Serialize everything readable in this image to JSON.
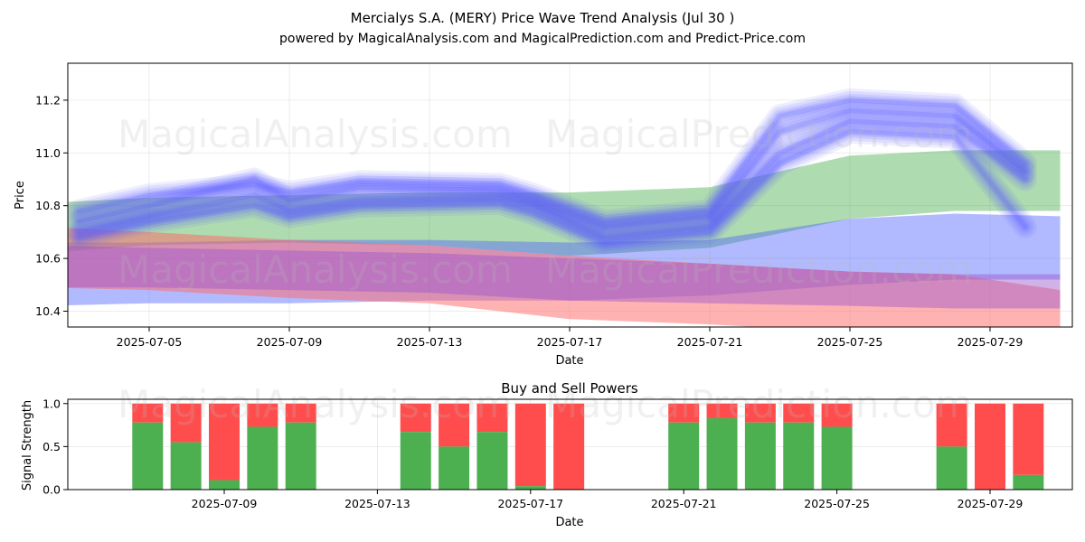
{
  "header": {
    "title": "Mercialys S.A. (MERY) Price Wave Trend Analysis (Jul 30 )",
    "subtitle": "powered by MagicalAnalysis.com and MagicalPrediction.com and Predict-Price.com"
  },
  "watermarks": [
    "MagicalAnalysis.com",
    "MagicalPrediction.com"
  ],
  "chart_data": [
    {
      "type": "area",
      "title": "",
      "xlabel": "Date",
      "ylabel": "Price",
      "ylim": [
        10.34,
        11.34
      ],
      "yticks": [
        "10.4",
        "10.6",
        "10.8",
        "11.0",
        "11.2"
      ],
      "xlim": [
        "2025-07-02",
        "2025-07-31"
      ],
      "xticks": [
        "2025-07-05",
        "2025-07-09",
        "2025-07-13",
        "2025-07-17",
        "2025-07-21",
        "2025-07-25",
        "2025-07-29"
      ],
      "grid": true,
      "bands": [
        {
          "name": "green band",
          "color": "#4caf50",
          "opacity": 0.45,
          "x": [
            "2025-07-02",
            "2025-07-05",
            "2025-07-09",
            "2025-07-13",
            "2025-07-17",
            "2025-07-21",
            "2025-07-25",
            "2025-07-28",
            "2025-07-31"
          ],
          "upper": [
            10.81,
            10.83,
            10.84,
            10.85,
            10.85,
            10.87,
            10.99,
            11.01,
            11.01
          ],
          "lower": [
            10.62,
            10.65,
            10.66,
            10.65,
            10.61,
            10.64,
            10.75,
            10.78,
            10.78
          ]
        },
        {
          "name": "blue band",
          "color": "#5566ff",
          "opacity": 0.45,
          "x": [
            "2025-07-02",
            "2025-07-05",
            "2025-07-09",
            "2025-07-13",
            "2025-07-17",
            "2025-07-21",
            "2025-07-25",
            "2025-07-28",
            "2025-07-31"
          ],
          "upper": [
            10.66,
            10.66,
            10.67,
            10.67,
            10.66,
            10.67,
            10.75,
            10.77,
            10.76
          ],
          "lower": [
            10.42,
            10.43,
            10.43,
            10.44,
            10.44,
            10.46,
            10.5,
            10.52,
            10.52
          ]
        },
        {
          "name": "red band",
          "color": "#ff6666",
          "opacity": 0.5,
          "x": [
            "2025-07-02",
            "2025-07-05",
            "2025-07-09",
            "2025-07-13",
            "2025-07-17",
            "2025-07-21",
            "2025-07-25",
            "2025-07-28",
            "2025-07-31"
          ],
          "upper": [
            10.72,
            10.7,
            10.67,
            10.65,
            10.61,
            10.58,
            10.55,
            10.54,
            10.48
          ],
          "lower": [
            10.49,
            10.48,
            10.45,
            10.43,
            10.37,
            10.35,
            10.32,
            10.3,
            10.29
          ]
        },
        {
          "name": "purple band",
          "color": "#9955cc",
          "opacity": 0.45,
          "x": [
            "2025-07-02",
            "2025-07-05",
            "2025-07-09",
            "2025-07-13",
            "2025-07-17",
            "2025-07-21",
            "2025-07-25",
            "2025-07-28",
            "2025-07-31"
          ],
          "upper": [
            10.65,
            10.64,
            10.63,
            10.62,
            10.6,
            10.58,
            10.55,
            10.54,
            10.54
          ],
          "lower": [
            10.49,
            10.49,
            10.48,
            10.47,
            10.44,
            10.43,
            10.42,
            10.41,
            10.41
          ]
        }
      ],
      "waves": [
        {
          "x": [
            "2025-07-03",
            "2025-07-05",
            "2025-07-08",
            "2025-07-09",
            "2025-07-11",
            "2025-07-15",
            "2025-07-16",
            "2025-07-18",
            "2025-07-21",
            "2025-07-23",
            "2025-07-25",
            "2025-07-28",
            "2025-07-30"
          ],
          "y": [
            10.74,
            10.8,
            10.9,
            10.82,
            10.87,
            10.86,
            10.82,
            10.72,
            10.76,
            11.08,
            11.16,
            11.14,
            10.93
          ]
        },
        {
          "x": [
            "2025-07-03",
            "2025-07-05",
            "2025-07-08",
            "2025-07-09",
            "2025-07-11",
            "2025-07-15",
            "2025-07-16",
            "2025-07-18",
            "2025-07-21",
            "2025-07-23",
            "2025-07-25",
            "2025-07-28",
            "2025-07-30"
          ],
          "y": [
            10.7,
            10.76,
            10.84,
            10.78,
            10.82,
            10.83,
            10.8,
            10.68,
            10.72,
            11.0,
            11.12,
            11.1,
            10.9
          ]
        },
        {
          "x": [
            "2025-07-03",
            "2025-07-05",
            "2025-07-08",
            "2025-07-09",
            "2025-07-11",
            "2025-07-15",
            "2025-07-16",
            "2025-07-18",
            "2025-07-21",
            "2025-07-23",
            "2025-07-25",
            "2025-07-28",
            "2025-07-30"
          ],
          "y": [
            10.78,
            10.84,
            10.88,
            10.85,
            10.89,
            10.88,
            10.84,
            10.74,
            10.78,
            11.14,
            11.2,
            11.18,
            10.96
          ]
        },
        {
          "x": [
            "2025-07-03",
            "2025-07-05",
            "2025-07-08",
            "2025-07-09",
            "2025-07-11",
            "2025-07-15",
            "2025-07-16",
            "2025-07-18",
            "2025-07-21",
            "2025-07-23",
            "2025-07-25",
            "2025-07-28",
            "2025-07-30"
          ],
          "y": [
            10.68,
            10.74,
            10.8,
            10.76,
            10.8,
            10.81,
            10.77,
            10.66,
            10.7,
            10.96,
            11.08,
            11.06,
            10.72
          ]
        }
      ]
    },
    {
      "type": "bar",
      "title": "Buy and Sell Powers",
      "xlabel": "Date",
      "ylabel": "Signal Strength",
      "ylim": [
        0,
        1.05
      ],
      "yticks": [
        "0.0",
        "0.5",
        "1.0"
      ],
      "xticks": [
        "2025-07-09",
        "2025-07-13",
        "2025-07-17",
        "2025-07-21",
        "2025-07-25",
        "2025-07-29"
      ],
      "xlim": [
        "2025-07-02",
        "2025-07-31"
      ],
      "grid": true,
      "series": [
        {
          "name": "Buy",
          "color": "#4caf50"
        },
        {
          "name": "Sell",
          "color": "#ff4d4d"
        }
      ],
      "dates": [
        "2025-07-07",
        "2025-07-08",
        "2025-07-09",
        "2025-07-10",
        "2025-07-11",
        "2025-07-14",
        "2025-07-15",
        "2025-07-16",
        "2025-07-17",
        "2025-07-18",
        "2025-07-21",
        "2025-07-22",
        "2025-07-23",
        "2025-07-24",
        "2025-07-25",
        "2025-07-28",
        "2025-07-29",
        "2025-07-30"
      ],
      "buy": [
        0.78,
        0.55,
        0.11,
        0.73,
        0.78,
        0.67,
        0.5,
        0.67,
        0.04,
        0.0,
        0.78,
        0.83,
        0.78,
        0.78,
        0.73,
        0.5,
        0.0,
        0.17
      ]
    }
  ]
}
